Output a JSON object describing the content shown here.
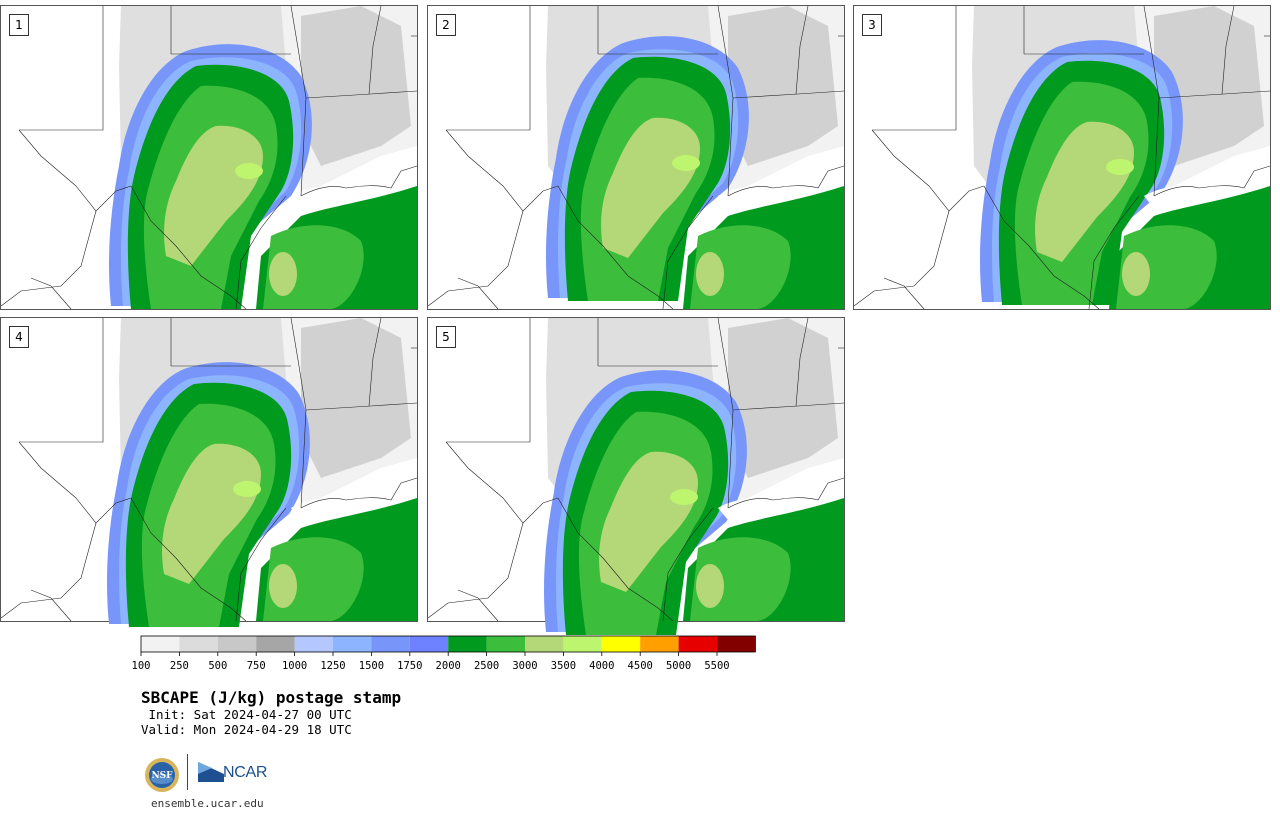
{
  "title": "SBCAPE (J/kg) postage stamp",
  "init_line": " Init: Sat 2024-04-27 00 UTC",
  "valid_line": "Valid: Mon 2024-04-29 18 UTC",
  "site": "ensemble.ucar.edu",
  "logos": {
    "nsf": "NSF",
    "ncar": "NCAR"
  },
  "members": [
    {
      "label": "1"
    },
    {
      "label": "2"
    },
    {
      "label": "3"
    },
    {
      "label": "4"
    },
    {
      "label": "5"
    }
  ],
  "colorbar": {
    "colors": [
      "#f2f2f2",
      "#dcdcdc",
      "#c8c8c8",
      "#a6a6a6",
      "#b4c8ff",
      "#8cb4ff",
      "#7896fa",
      "#6e82ff",
      "#009b1e",
      "#3cbe3c",
      "#b4d778",
      "#bef56e",
      "#ffff00",
      "#ffa000",
      "#e60000",
      "#820000"
    ],
    "tick_labels": [
      "100",
      "250",
      "500",
      "750",
      "1000",
      "1250",
      "1500",
      "1750",
      "2000",
      "2500",
      "3000",
      "3500",
      "4000",
      "4500",
      "5000",
      "5500"
    ]
  }
}
